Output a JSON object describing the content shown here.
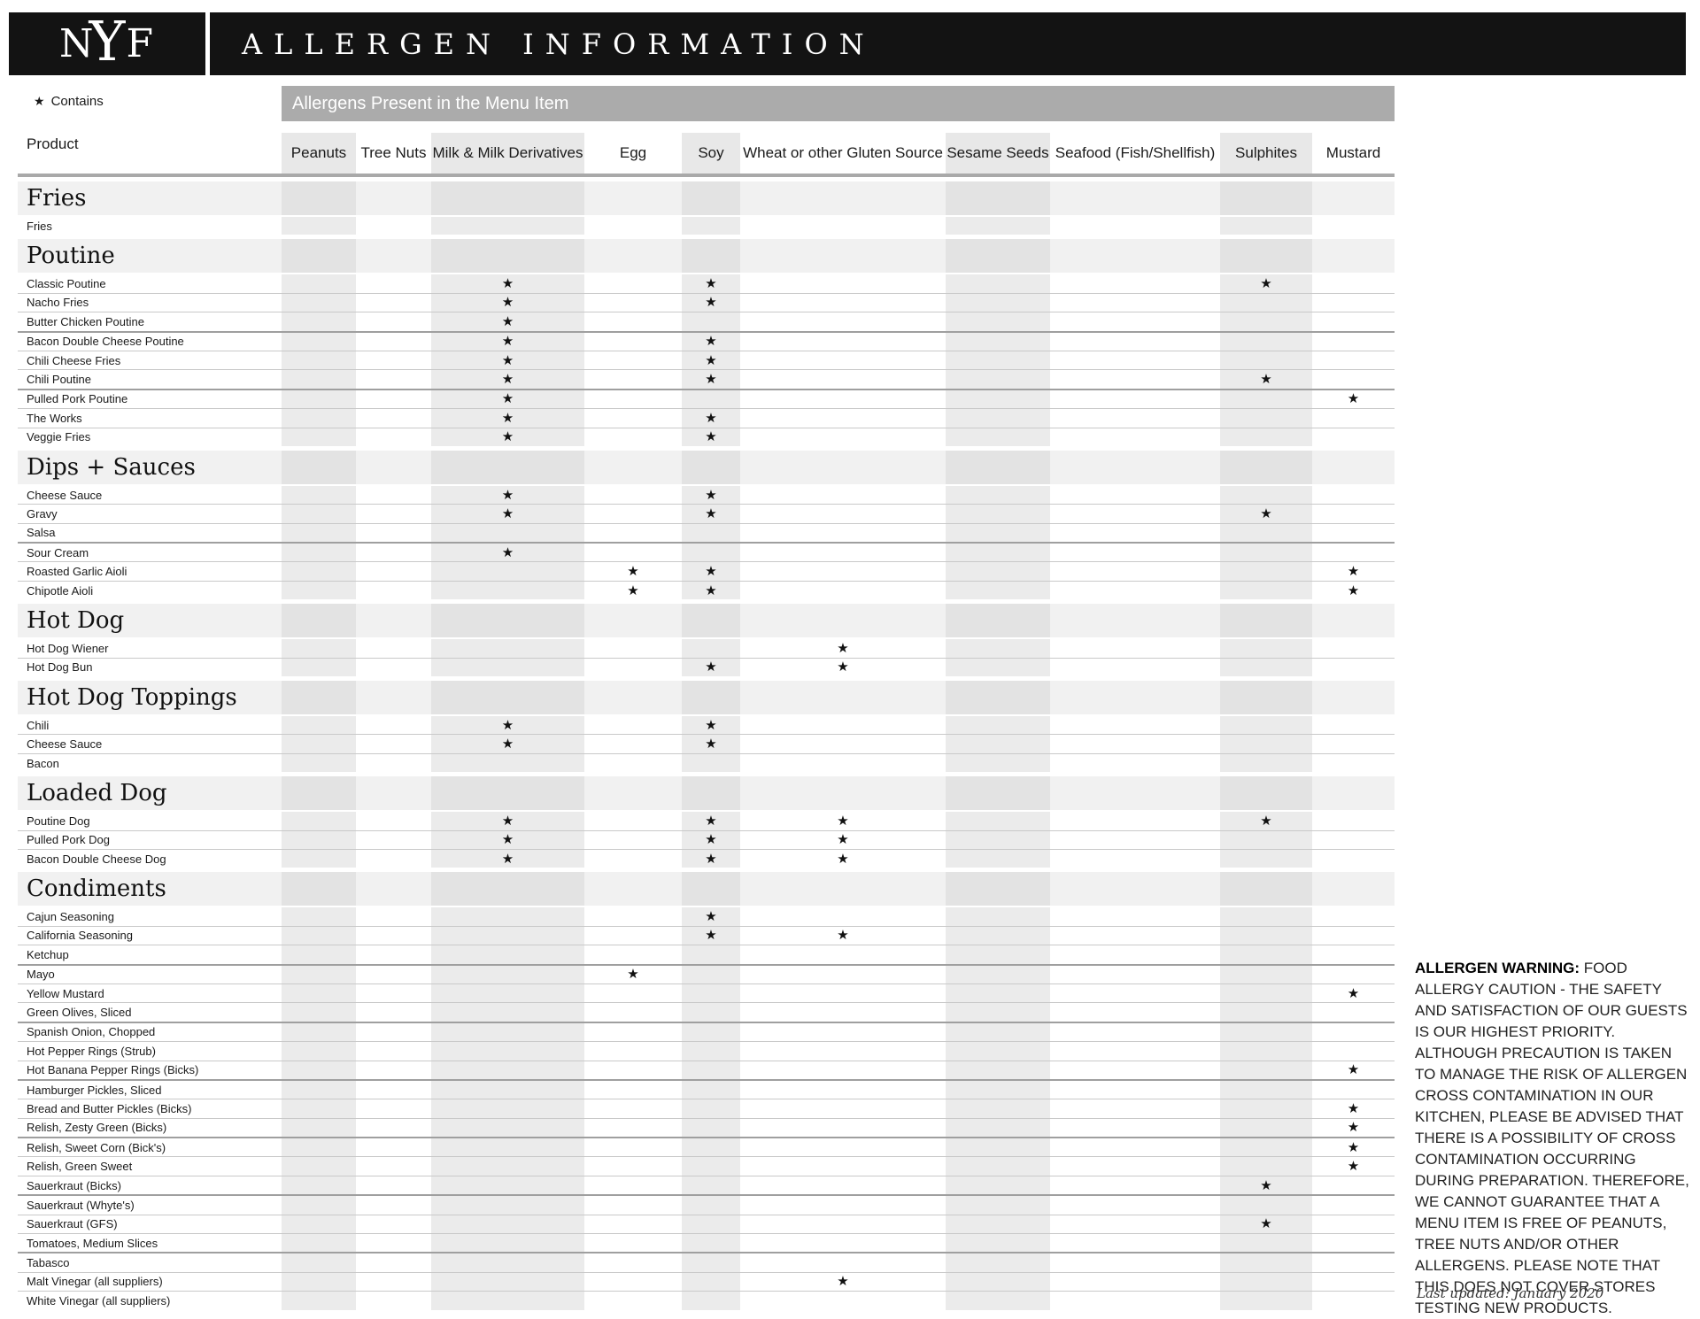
{
  "header": {
    "logo_letters": [
      "N",
      "Y",
      "F"
    ],
    "title": "ALLERGEN INFORMATION"
  },
  "legend": {
    "symbol": "★",
    "label": "Contains"
  },
  "banner": "Allergens Present in the Menu Item",
  "colors": {
    "topbar_black": "#131313",
    "banner_gray": "#ababab",
    "column_stripe_gray": "#ebebeb",
    "section_band_gray": "#f1f1f1",
    "star_black": "#111111"
  },
  "table": {
    "product_column_label": "Product",
    "columns": [
      "Peanuts",
      "Tree Nuts",
      "Milk & Milk Derivatives",
      "Egg",
      "Soy",
      "Wheat or other Gluten Source",
      "Sesame Seeds",
      "Seafood (Fish/Shellfish)",
      "Sulphites",
      "Mustard"
    ],
    "shaded_column_indexes": [
      0,
      2,
      4,
      6,
      8
    ],
    "contains_symbol": "★",
    "sections": [
      {
        "name": "Fries",
        "rows": [
          {
            "product": "Fries",
            "allergens": []
          }
        ]
      },
      {
        "name": "Poutine",
        "rows": [
          {
            "product": "Classic Poutine",
            "allergens": [
              2,
              4,
              8
            ]
          },
          {
            "product": "Nacho Fries",
            "allergens": [
              2,
              4
            ]
          },
          {
            "product": "Butter Chicken Poutine",
            "allergens": [
              2
            ]
          },
          {
            "product": "Bacon Double Cheese Poutine",
            "allergens": [
              2,
              4
            ]
          },
          {
            "product": "Chili Cheese Fries",
            "allergens": [
              2,
              4
            ]
          },
          {
            "product": "Chili Poutine",
            "allergens": [
              2,
              4,
              8
            ]
          },
          {
            "product": "Pulled Pork Poutine",
            "allergens": [
              2,
              9
            ]
          },
          {
            "product": "The Works",
            "allergens": [
              2,
              4
            ]
          },
          {
            "product": "Veggie Fries",
            "allergens": [
              2,
              4
            ]
          }
        ]
      },
      {
        "name": "Dips + Sauces",
        "rows": [
          {
            "product": "Cheese Sauce",
            "allergens": [
              2,
              4
            ]
          },
          {
            "product": "Gravy",
            "allergens": [
              2,
              4,
              8
            ]
          },
          {
            "product": "Salsa",
            "allergens": []
          },
          {
            "product": "Sour Cream",
            "allergens": [
              2
            ]
          },
          {
            "product": "Roasted Garlic Aioli",
            "allergens": [
              3,
              4,
              9
            ]
          },
          {
            "product": "Chipotle Aioli",
            "allergens": [
              3,
              4,
              9
            ]
          }
        ]
      },
      {
        "name": "Hot Dog",
        "rows": [
          {
            "product": "Hot Dog Wiener",
            "allergens": [
              5
            ]
          },
          {
            "product": "Hot Dog Bun",
            "allergens": [
              4,
              5
            ]
          }
        ]
      },
      {
        "name": "Hot Dog Toppings",
        "rows": [
          {
            "product": "Chili",
            "allergens": [
              2,
              4
            ]
          },
          {
            "product": "Cheese Sauce",
            "allergens": [
              2,
              4
            ]
          },
          {
            "product": "Bacon",
            "allergens": []
          }
        ]
      },
      {
        "name": "Loaded Dog",
        "rows": [
          {
            "product": "Poutine Dog",
            "allergens": [
              2,
              4,
              5,
              8
            ]
          },
          {
            "product": "Pulled Pork Dog",
            "allergens": [
              2,
              4,
              5
            ]
          },
          {
            "product": "Bacon Double Cheese Dog",
            "allergens": [
              2,
              4,
              5
            ]
          }
        ]
      },
      {
        "name": "Condiments",
        "rows": [
          {
            "product": "Cajun Seasoning",
            "allergens": [
              4
            ]
          },
          {
            "product": "California Seasoning",
            "allergens": [
              4,
              5
            ]
          },
          {
            "product": "Ketchup",
            "allergens": []
          },
          {
            "product": "Mayo",
            "allergens": [
              3
            ]
          },
          {
            "product": "Yellow Mustard",
            "allergens": [
              9
            ]
          },
          {
            "product": "Green Olives, Sliced",
            "allergens": []
          },
          {
            "product": "Spanish Onion, Chopped",
            "allergens": []
          },
          {
            "product": "Hot Pepper Rings (Strub)",
            "allergens": []
          },
          {
            "product": "Hot Banana Pepper Rings (Bicks)",
            "allergens": [
              9
            ]
          },
          {
            "product": "Hamburger Pickles, Sliced",
            "allergens": []
          },
          {
            "product": "Bread and Butter Pickles (Bicks)",
            "allergens": [
              9
            ]
          },
          {
            "product": "Relish, Zesty Green (Bicks)",
            "allergens": [
              9
            ]
          },
          {
            "product": "Relish, Sweet Corn (Bick's)",
            "allergens": [
              9
            ]
          },
          {
            "product": "Relish, Green Sweet",
            "allergens": [
              9
            ]
          },
          {
            "product": "Sauerkraut (Bicks)",
            "allergens": [
              8
            ]
          },
          {
            "product": "Sauerkraut (Whyte's)",
            "allergens": []
          },
          {
            "product": "Sauerkraut (GFS)",
            "allergens": [
              8
            ]
          },
          {
            "product": "Tomatoes, Medium Slices",
            "allergens": []
          },
          {
            "product": "Tabasco",
            "allergens": []
          },
          {
            "product": "Malt Vinegar (all suppliers)",
            "allergens": [
              5
            ]
          },
          {
            "product": "White Vinegar (all suppliers)",
            "allergens": []
          }
        ]
      }
    ]
  },
  "warning": {
    "title": "ALLERGEN WARNING:",
    "body": "FOOD ALLERGY CAUTION - THE SAFETY AND SATISFACTION OF OUR GUESTS IS OUR HIGHEST PRIORITY. ALTHOUGH PRECAUTION IS TAKEN TO MANAGE THE RISK OF ALLERGEN CROSS CONTAMINATION IN OUR KITCHEN, PLEASE BE ADVISED THAT THERE IS A POSSIBILITY OF CROSS CONTAMINATION OCCURRING DURING PREPARATION. THEREFORE, WE CANNOT GUARANTEE THAT A MENU ITEM IS FREE OF PEANUTS, TREE NUTS AND/OR OTHER ALLERGENS. PLEASE NOTE THAT THIS DOES NOT COVER STORES TESTING NEW PRODUCTS."
  },
  "footer": {
    "last_updated": "Last updated: January 2020"
  }
}
